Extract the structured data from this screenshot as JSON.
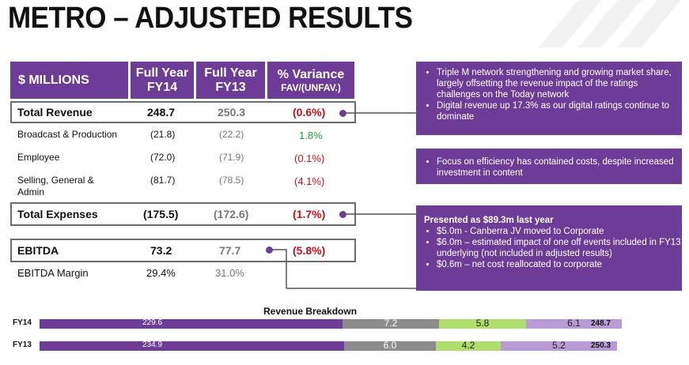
{
  "title": "METRO – ADJUSTED RESULTS",
  "table": {
    "header": {
      "label": "$ MILLIONS",
      "fy14_line1": "Full Year",
      "fy14_line2": "FY14",
      "fy13_line1": "Full Year",
      "fy13_line2": "FY13",
      "var_line1": "% Variance",
      "var_line2": "FAV/(UNFAV.)"
    },
    "rows": [
      {
        "label": "Total Revenue",
        "fy14": "248.7",
        "fy13": "250.3",
        "variance": "(0.6%)"
      },
      {
        "label": "Broadcast & Production",
        "fy14": "(21.8)",
        "fy13": "(22.2)",
        "variance": "1.8%"
      },
      {
        "label": "Employee",
        "fy14": "(72.0)",
        "fy13": "(71.9)",
        "variance": "(0.1%)"
      },
      {
        "label_line1": "Selling, General &",
        "label_line2": "Admin",
        "fy14": "(81.7)",
        "fy13": "(78.5)",
        "variance": "(4.1%)"
      },
      {
        "label": "Total Expenses",
        "fy14": "(175.5)",
        "fy13": "(172.6)",
        "variance": "(1.7%)"
      },
      {
        "label": "EBITDA",
        "fy14": "73.2",
        "fy13": "77.7",
        "variance": "(5.8%)"
      },
      {
        "label": "EBITDA Margin",
        "fy14": "29.4%",
        "fy13": "31.0%",
        "variance": ""
      }
    ]
  },
  "callouts": {
    "revenue": [
      "Triple M network strengthening  and growing market share, largely offsetting the revenue impact of  the ratings challenges on the Today network",
      "Digital revenue up  17.3% as our digital ratings continue to dominate"
    ],
    "expenses": [
      "Focus on efficiency has contained costs, despite increased investment in content"
    ],
    "ebitda": {
      "heading": "Presented as $89.3m last year",
      "items": [
        "$5.0m - Canberra JV moved to Corporate",
        "$6.0m – estimated impact of one off events included in FY13 underlying (not included in adjusted results)",
        "$0.6m –  net cost reallocated to corporate"
      ]
    }
  },
  "revenue_breakdown": {
    "title": "Revenue Breakdown",
    "rows": [
      {
        "label": "FY14",
        "values": [
          "229.6",
          "7.2",
          "5.8",
          "6.1"
        ],
        "total": "248.7"
      },
      {
        "label": "FY13",
        "values": [
          "234.9",
          "6.0",
          "4.2",
          "5.2"
        ],
        "total": "250.3"
      }
    ],
    "colors": [
      "#6d3c97",
      "#8c8c8c",
      "#b0dd6e",
      "#b89bd4"
    ]
  },
  "chart_data": {
    "type": "bar",
    "title": "Revenue Breakdown",
    "categories": [
      "FY14",
      "FY13"
    ],
    "stacked": true,
    "orientation": "horizontal",
    "series": [
      {
        "values": [
          229.6,
          234.9
        ]
      },
      {
        "values": [
          7.2,
          6.0
        ]
      },
      {
        "values": [
          5.8,
          4.2
        ]
      },
      {
        "values": [
          6.1,
          5.2
        ]
      }
    ],
    "totals": [
      248.7,
      250.3
    ]
  }
}
